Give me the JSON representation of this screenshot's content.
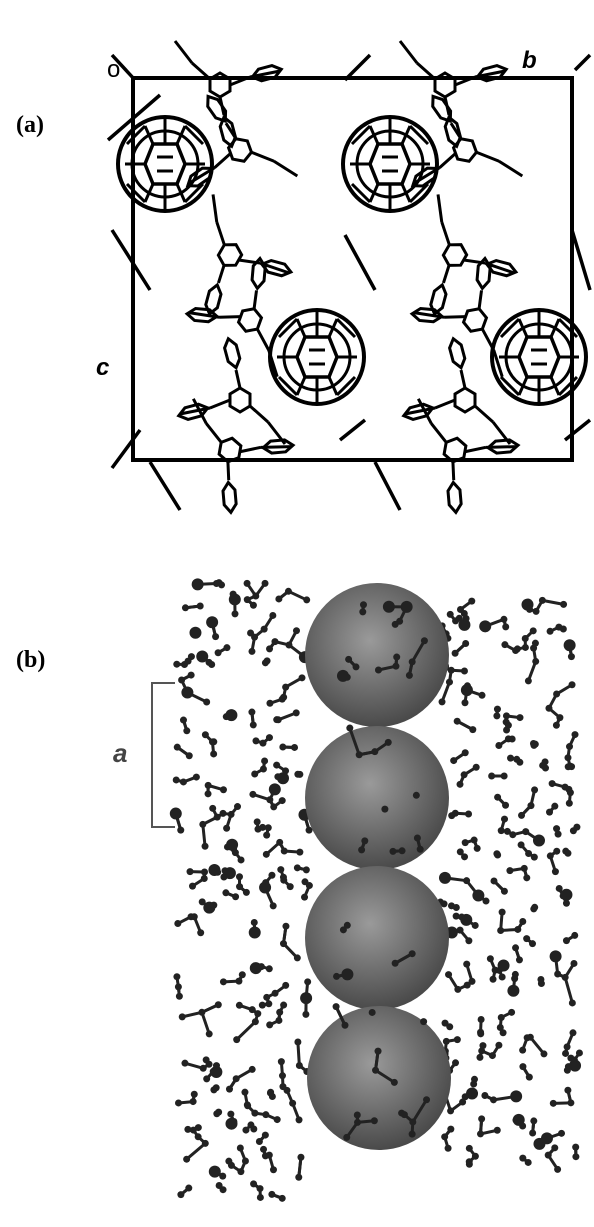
{
  "panel_a": {
    "label": "(a)",
    "axis_labels": {
      "origin": "o",
      "b": "b",
      "c": "c"
    }
  },
  "panel_b": {
    "label": "(b)",
    "axis_label": "a"
  }
}
